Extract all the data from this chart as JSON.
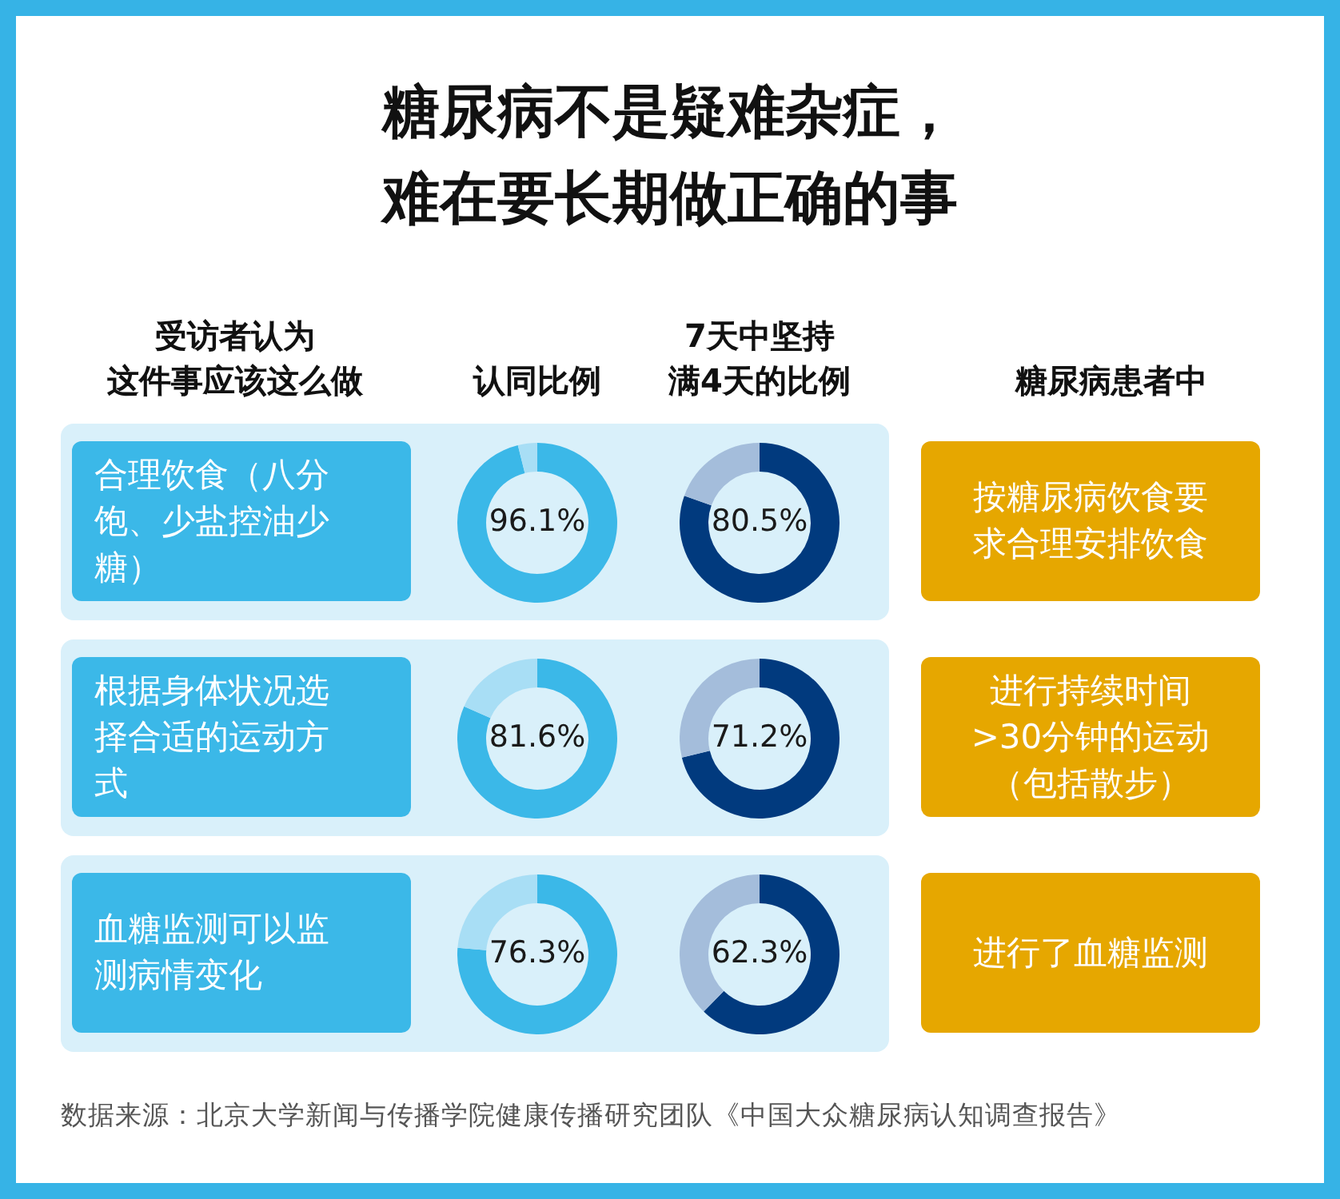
{
  "chart_data": [
    {
      "type": "other",
      "title": "糖尿病不是疑难杂症，难在要长期做正确的事",
      "annotations": [
        "受访者认为",
        "这件事应该这么做",
        "认同比例",
        "7天中坚持",
        "满4天的比例",
        "糖尿病患者中",
        "合理饮食（八分饱、少盐控油少糖）",
        "根据身体状况选择合适的运动方式",
        "血糖监测可以监测病情变化",
        "按糖尿病饮食要求合理安排饮食",
        "进行持续时间>30分钟的运动（包括散步）",
        "进行了血糖监测",
        "数据来源：北京大学新闻与传播学院健康传播研究团队《中国大众糖尿病认知调查报告》"
      ]
    },
    {
      "type": "donut",
      "categories": [
        null,
        null
      ],
      "values": [
        96.1,
        3.9
      ],
      "colors": [
        "#3bb8e8",
        "#a8def5"
      ],
      "value_labels": [
        "96.1%",
        null
      ],
      "legend": false
    },
    {
      "type": "donut",
      "categories": [
        null,
        null
      ],
      "values": [
        80.5,
        19.5
      ],
      "colors": [
        "#013a7e",
        "#a4bddb"
      ],
      "value_labels": [
        "80.5%",
        null
      ],
      "legend": false
    },
    {
      "type": "donut",
      "categories": [
        null,
        null
      ],
      "values": [
        81.6,
        18.4
      ],
      "colors": [
        "#3bb8e8",
        "#a8def5"
      ],
      "value_labels": [
        "81.6%",
        null
      ],
      "legend": false
    },
    {
      "type": "donut",
      "categories": [
        null,
        null
      ],
      "values": [
        71.2,
        28.8
      ],
      "colors": [
        "#013a7e",
        "#a4bddb"
      ],
      "value_labels": [
        "71.2%",
        null
      ],
      "legend": false
    },
    {
      "type": "donut",
      "categories": [
        null,
        null
      ],
      "values": [
        76.3,
        23.7
      ],
      "colors": [
        "#3bb8e8",
        "#a8def5"
      ],
      "value_labels": [
        "76.3%",
        null
      ],
      "legend": false
    },
    {
      "type": "donut",
      "categories": [
        null,
        null
      ],
      "values": [
        62.3,
        37.7
      ],
      "colors": [
        "#013a7e",
        "#a4bddb"
      ],
      "value_labels": [
        "62.3%",
        null
      ],
      "legend": false
    }
  ]
}
